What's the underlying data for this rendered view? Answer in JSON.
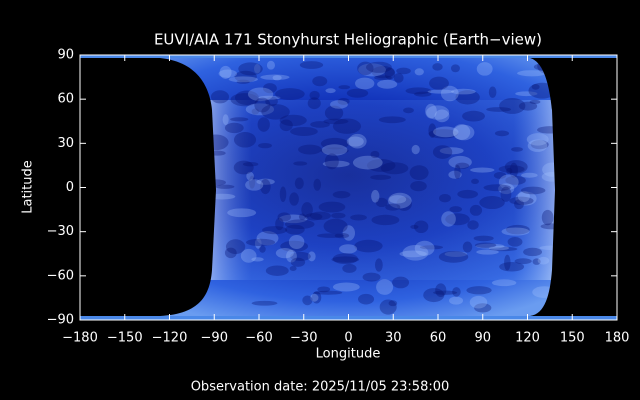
{
  "chart_data": {
    "type": "image",
    "title": "EUVI/AIA 171 Stonyhurst Heliographic (Earth−view)",
    "x_label": "Longitude",
    "y_label": "Latitude",
    "footer": "Observation date: 2025/11/05 23:58:00",
    "xlim": [
      -180,
      180
    ],
    "ylim": [
      -90,
      90
    ],
    "xticks": [
      {
        "value": -180,
        "label": "−180"
      },
      {
        "value": -150,
        "label": "−150"
      },
      {
        "value": -120,
        "label": "−120"
      },
      {
        "value": -90,
        "label": "−90"
      },
      {
        "value": -60,
        "label": "−60"
      },
      {
        "value": -30,
        "label": "−30"
      },
      0,
      30,
      60,
      90,
      120,
      150,
      180
    ],
    "yticks": [
      {
        "value": -90,
        "label": "−90"
      },
      {
        "value": -60,
        "label": "−60"
      },
      {
        "value": -30,
        "label": "−30"
      },
      0,
      30,
      60,
      90
    ]
  }
}
